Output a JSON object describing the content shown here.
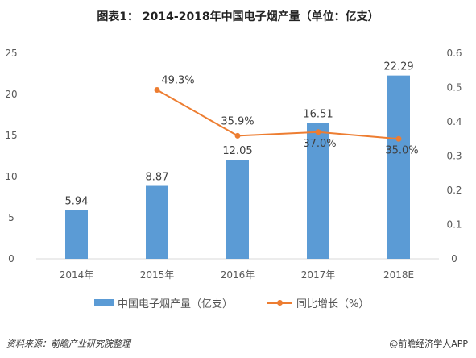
{
  "title": "图表1：  2014-2018年中国电子烟产量（单位：亿支）",
  "source": "资料来源：前瞻产业研究院整理",
  "watermark": "@前瞻经济学人APP",
  "chart_data": {
    "type": "bar",
    "categories": [
      "2014年",
      "2015年",
      "2016年",
      "2017年",
      "2018E"
    ],
    "series": [
      {
        "name": "中国电子烟产量（亿支）",
        "type": "bar",
        "axis": "left",
        "color": "#5b9bd5",
        "values": [
          5.94,
          8.87,
          12.05,
          16.51,
          22.29
        ],
        "labels": [
          "5.94",
          "8.87",
          "12.05",
          "16.51",
          "22.29"
        ]
      },
      {
        "name": "同比增长（%）",
        "type": "line",
        "axis": "right",
        "color": "#ed7d31",
        "values": [
          null,
          0.493,
          0.359,
          0.37,
          0.35
        ],
        "labels": [
          "",
          "49.3%",
          "35.9%",
          "37.0%",
          "35.0%"
        ]
      }
    ],
    "y_left": {
      "min": 0,
      "max": 25,
      "ticks": [
        "0",
        "5",
        "10",
        "15",
        "20",
        "25"
      ]
    },
    "y_right": {
      "min": 0,
      "max": 0.6,
      "ticks": [
        "0",
        "0.1",
        "0.2",
        "0.3",
        "0.4",
        "0.5",
        "0.6"
      ]
    },
    "grid": false,
    "legend": "bottom"
  }
}
